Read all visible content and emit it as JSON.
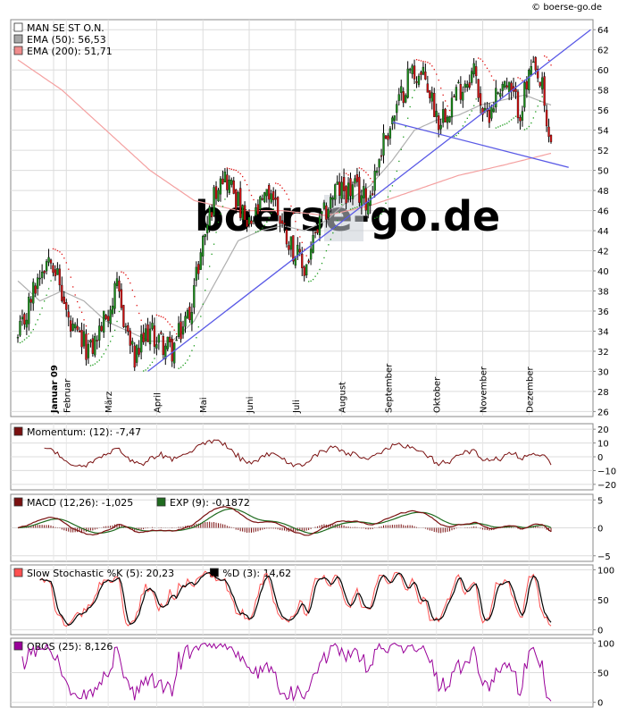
{
  "source_label": "© boerse-go.de",
  "watermark": "boerse-go.de",
  "chart_data": [
    {
      "type": "candlestick",
      "panel": "price",
      "legend": [
        {
          "label": "MAN SE ST O.N.",
          "color": "#ffffff"
        },
        {
          "label": "EMA (50): 56,53",
          "color": "#a6a6a6"
        },
        {
          "label": "EMA (200): 51,71",
          "color": "#f08c8c"
        }
      ],
      "ylim": [
        25.5,
        65
      ],
      "y_ticks": [
        "64",
        "62",
        "60",
        "58",
        "56",
        "54",
        "52",
        "50",
        "48",
        "46",
        "44",
        "42",
        "40",
        "38",
        "36",
        "34",
        "32",
        "30",
        "28",
        "26"
      ],
      "x_ticks": [
        "Januar 09",
        "Februar",
        "März",
        "April",
        "Mai",
        "Juni",
        "Juli",
        "August",
        "September",
        "Oktober",
        "November",
        "Dezember"
      ],
      "close_anchors": [
        [
          0,
          33
        ],
        [
          10,
          40
        ],
        [
          15,
          42
        ],
        [
          24,
          34
        ],
        [
          33,
          32
        ],
        [
          45,
          38
        ],
        [
          53,
          31
        ],
        [
          59,
          34
        ],
        [
          70,
          32
        ],
        [
          78,
          36
        ],
        [
          84,
          43
        ],
        [
          92,
          50
        ],
        [
          98,
          48
        ],
        [
          104,
          44
        ],
        [
          115,
          48
        ],
        [
          121,
          44
        ],
        [
          130,
          40
        ],
        [
          136,
          44
        ],
        [
          144,
          48
        ],
        [
          153,
          48
        ],
        [
          159,
          47
        ],
        [
          166,
          53
        ],
        [
          172,
          56
        ],
        [
          178,
          60
        ],
        [
          185,
          59
        ],
        [
          191,
          55
        ],
        [
          200,
          58
        ],
        [
          207,
          60
        ],
        [
          212,
          55
        ],
        [
          220,
          59
        ],
        [
          228,
          56
        ],
        [
          233,
          60
        ],
        [
          238,
          58
        ],
        [
          240,
          54
        ],
        [
          242,
          53
        ]
      ],
      "ema50_anchors": [
        [
          0,
          39
        ],
        [
          10,
          37
        ],
        [
          20,
          38
        ],
        [
          30,
          37
        ],
        [
          40,
          35
        ],
        [
          50,
          34
        ],
        [
          60,
          33
        ],
        [
          70,
          33
        ],
        [
          80,
          35
        ],
        [
          90,
          39
        ],
        [
          100,
          43
        ],
        [
          110,
          44
        ],
        [
          120,
          44.5
        ],
        [
          130,
          44
        ],
        [
          140,
          45
        ],
        [
          150,
          47
        ],
        [
          160,
          48.5
        ],
        [
          170,
          51
        ],
        [
          180,
          54
        ],
        [
          190,
          55
        ],
        [
          200,
          55.5
        ],
        [
          210,
          56.5
        ],
        [
          220,
          57
        ],
        [
          230,
          57.5
        ],
        [
          242,
          56.5
        ]
      ],
      "ema200_anchors": [
        [
          0,
          61
        ],
        [
          20,
          58
        ],
        [
          40,
          54
        ],
        [
          60,
          50
        ],
        [
          80,
          47
        ],
        [
          100,
          46
        ],
        [
          120,
          46
        ],
        [
          140,
          45.5
        ],
        [
          160,
          46.5
        ],
        [
          180,
          48
        ],
        [
          200,
          49.5
        ],
        [
          220,
          50.5
        ],
        [
          242,
          51.7
        ]
      ],
      "trendlines": [
        {
          "from": [
            59,
            30
          ],
          "to": [
            260,
            64
          ],
          "color": "#5a5ae6"
        },
        {
          "from": [
            170,
            54.8
          ],
          "to": [
            250,
            50.3
          ],
          "color": "#5a5ae6"
        }
      ]
    },
    {
      "type": "line",
      "panel": "momentum",
      "legend": [
        {
          "label": "Momentum: (12): -7,47",
          "color": "#7a1010"
        }
      ],
      "ylim": [
        -24,
        24
      ],
      "y_ticks": [
        "20",
        "10",
        "0",
        "−10",
        "−20"
      ],
      "y_tick_values": [
        20,
        10,
        0,
        -10,
        -20
      ]
    },
    {
      "type": "line",
      "panel": "macd",
      "legend": [
        {
          "label": "MACD (12,26): -1,025",
          "color": "#7a1010"
        },
        {
          "label": "EXP (9): -0,1872",
          "color": "#1f6b1f"
        }
      ],
      "ylim": [
        -6,
        6
      ],
      "y_ticks": [
        "5",
        "0",
        "−5"
      ],
      "y_tick_values": [
        5,
        0,
        -5
      ]
    },
    {
      "type": "line",
      "panel": "stochastic",
      "legend": [
        {
          "label": "Slow Stochastic %K (5): 20,23",
          "color": "#ff5050"
        },
        {
          "label": "%D (3): 14,62",
          "color": "#000000"
        }
      ],
      "ylim": [
        -8,
        108
      ],
      "y_ticks": [
        "100",
        "50",
        "0"
      ],
      "y_tick_values": [
        100,
        50,
        0
      ]
    },
    {
      "type": "line",
      "panel": "obos",
      "legend": [
        {
          "label": "OBOS (25): 8,126",
          "color": "#990099"
        }
      ],
      "ylim": [
        -8,
        108
      ],
      "y_ticks": [
        "100",
        "50",
        "0"
      ],
      "y_tick_values": [
        100,
        50,
        0
      ]
    }
  ]
}
